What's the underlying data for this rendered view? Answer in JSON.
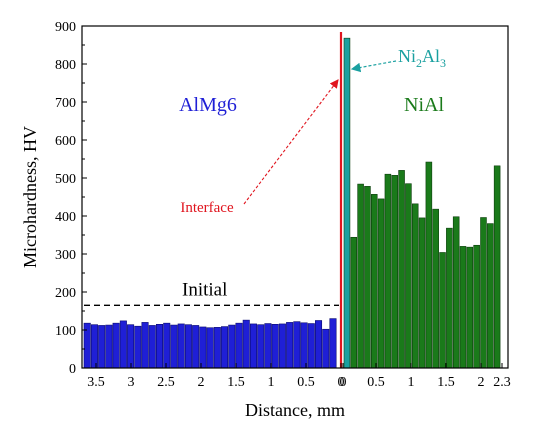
{
  "chart_data": {
    "type": "bar",
    "xlabel": "Distance, mm",
    "ylabel": "Microhardness, HV",
    "ylim": [
      0,
      900
    ],
    "y_ticks": [
      "0",
      "100",
      "200",
      "300",
      "400",
      "500",
      "600",
      "700",
      "800",
      "900"
    ],
    "x_ticks_left": [
      "3.5",
      "3",
      "2.5",
      "2",
      "1.5",
      "1",
      "0.5",
      "0"
    ],
    "x_ticks_right": [
      "0",
      "0.5",
      "1",
      "1.5",
      "2",
      "2.3"
    ],
    "grid": false,
    "colors": {
      "almg6": "#1f1fd6",
      "nial": "#1a7a1a",
      "ni2al3": "#1aa0a0",
      "interface": "#e0141e",
      "initial": "#000000"
    },
    "series": [
      {
        "name": "AlMg6",
        "x_from": 3.7,
        "x_to": 0.0,
        "values": [
          118,
          114,
          112,
          113,
          118,
          124,
          114,
          110,
          120,
          112,
          115,
          118,
          113,
          116,
          114,
          112,
          108,
          106,
          107,
          109,
          113,
          118,
          126,
          116,
          114,
          117,
          115,
          116,
          120,
          122,
          119,
          117,
          125,
          102,
          130
        ]
      },
      {
        "name": "NiAl",
        "x_from": 0.0,
        "x_to": 2.3,
        "values": [
          868,
          344,
          484,
          478,
          457,
          445,
          510,
          507,
          520,
          485,
          432,
          395,
          542,
          418,
          304,
          368,
          398,
          320,
          318,
          323,
          396,
          380,
          532
        ]
      }
    ],
    "annotations": {
      "almg6_label": "AlMg6",
      "nial_label": "NiAl",
      "ni2al3_main": "Ni",
      "ni2al3_sub1": "2",
      "ni2al3_mid": "Al",
      "ni2al3_sub2": "3",
      "interface_label": "Interface",
      "initial_label": "Initial",
      "initial_value": 165
    }
  }
}
